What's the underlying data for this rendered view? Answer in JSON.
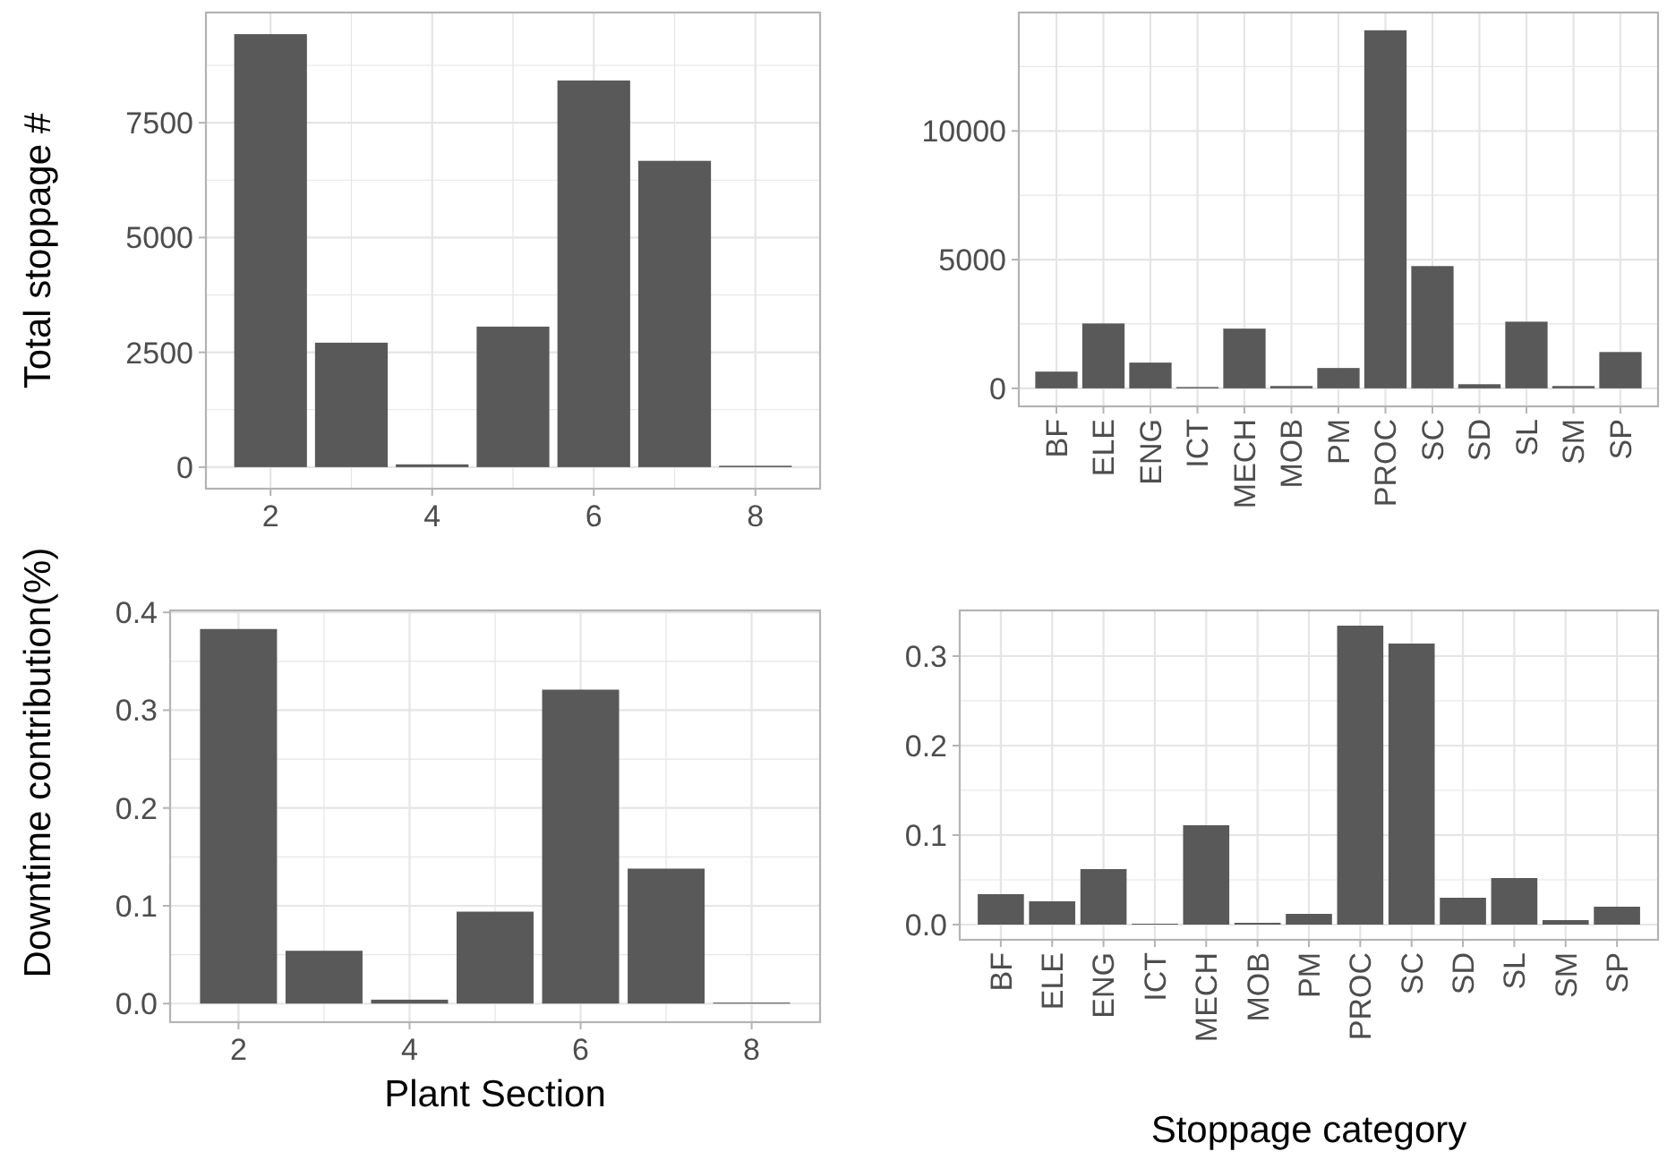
{
  "chart_data": [
    {
      "type": "bar",
      "ylabel": "Total stoppage #",
      "x": [
        2,
        3,
        4,
        5,
        6,
        7,
        8
      ],
      "values": [
        9430,
        2710,
        60,
        3060,
        8420,
        6670,
        30
      ],
      "color": "#595959",
      "xlim": [
        1.2,
        8.8
      ],
      "xticks": [
        2,
        {
          "value": 3,
          "label": null
        },
        4,
        {
          "value": 5,
          "label": null
        },
        6,
        {
          "value": 7,
          "label": null
        },
        8
      ],
      "ylim": [
        -470,
        9900
      ],
      "yticks": [
        0,
        {
          "value": 1250,
          "label": null
        },
        2500,
        {
          "value": 3750,
          "label": null
        },
        5000,
        {
          "value": 6250,
          "label": null
        },
        7500,
        {
          "value": 8750,
          "label": null
        }
      ],
      "grid": true
    },
    {
      "type": "bar",
      "categories": [
        "BF",
        "ELE",
        "ENG",
        "ICT",
        "MECH",
        "MOB",
        "PM",
        "PROC",
        "SC",
        "SD",
        "SL",
        "SM",
        "SP"
      ],
      "values": [
        650,
        2520,
        1000,
        50,
        2320,
        90,
        790,
        13910,
        4750,
        160,
        2590,
        90,
        1410
      ],
      "color": "#595959",
      "ylim": [
        -700,
        14600
      ],
      "yticks": [
        0,
        {
          "value": 2500,
          "label": null
        },
        5000,
        {
          "value": 7500,
          "label": null
        },
        10000,
        {
          "value": 12500,
          "label": null
        }
      ],
      "grid": true
    },
    {
      "type": "bar",
      "xlabel": "Plant Section",
      "ylabel": "Downtime contribution(%)",
      "x": [
        2,
        3,
        4,
        5,
        6,
        7,
        8
      ],
      "values": [
        0.383,
        0.054,
        0.004,
        0.094,
        0.321,
        0.138,
        0.001
      ],
      "color": "#595959",
      "xlim": [
        1.2,
        8.8
      ],
      "xticks": [
        2,
        {
          "value": 3,
          "label": null
        },
        4,
        {
          "value": 5,
          "label": null
        },
        6,
        {
          "value": 7,
          "label": null
        },
        8
      ],
      "ylim": [
        -0.019,
        0.402
      ],
      "yticks": [
        {
          "value": 0,
          "label": "0.0"
        },
        {
          "value": 0.05,
          "label": null
        },
        0.1,
        {
          "value": 0.15,
          "label": null
        },
        0.2,
        {
          "value": 0.25,
          "label": null
        },
        0.3,
        {
          "value": 0.35,
          "label": null
        },
        0.4
      ],
      "grid": true
    },
    {
      "type": "bar",
      "xlabel": "Stoppage category",
      "categories": [
        "BF",
        "ELE",
        "ENG",
        "ICT",
        "MECH",
        "MOB",
        "PM",
        "PROC",
        "SC",
        "SD",
        "SL",
        "SM",
        "SP"
      ],
      "values": [
        0.034,
        0.026,
        0.062,
        0.001,
        0.111,
        0.002,
        0.012,
        0.334,
        0.314,
        0.03,
        0.052,
        0.005,
        0.02
      ],
      "color": "#595959",
      "ylim": [
        -0.017,
        0.351
      ],
      "yticks": [
        {
          "value": 0,
          "label": "0.0"
        },
        {
          "value": 0.05,
          "label": null
        },
        0.1,
        {
          "value": 0.15,
          "label": null
        },
        0.2,
        {
          "value": 0.25,
          "label": null
        },
        0.3
      ],
      "grid": true
    }
  ]
}
